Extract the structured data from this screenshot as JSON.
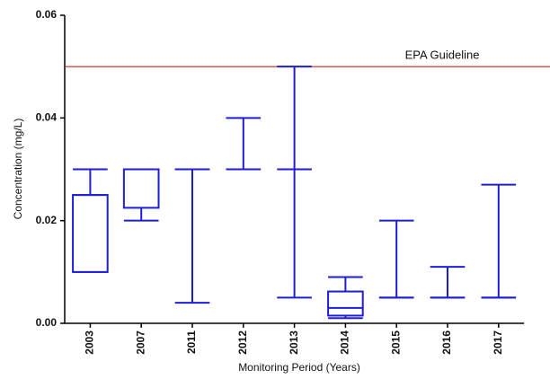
{
  "chart_data": {
    "type": "box",
    "xlabel": "Monitoring Period (Years)",
    "ylabel": "Concentration (mg/L)",
    "categories": [
      "2003",
      "2007",
      "2011",
      "2012",
      "2013",
      "2014",
      "2015",
      "2016",
      "2017"
    ],
    "color": "#1e1ed8",
    "min": [
      0.01,
      0.02,
      0.004,
      0.03,
      0.005,
      0.001,
      0.005,
      0.005,
      0.005
    ],
    "q1": [
      0.01,
      0.0225,
      0.03,
      0.03,
      0.03,
      0.0015,
      0.005,
      0.005,
      0.005
    ],
    "median": [
      0.025,
      0.03,
      0.03,
      0.03,
      0.03,
      0.003,
      0.005,
      0.005,
      0.005
    ],
    "q3": [
      0.025,
      0.03,
      0.03,
      0.03,
      0.03,
      0.0062,
      0.005,
      0.005,
      0.005
    ],
    "max": [
      0.03,
      0.03,
      0.03,
      0.04,
      0.05,
      0.009,
      0.02,
      0.011,
      0.027
    ],
    "ylim": [
      0,
      0.06
    ],
    "yticks": [
      {
        "value": 0,
        "label": "0.00"
      },
      {
        "value": 0.02,
        "label": "0.02"
      },
      {
        "value": 0.04,
        "label": "0.04"
      },
      {
        "value": 0.06,
        "label": "0.06"
      }
    ],
    "reference_line": {
      "value": 0.05,
      "label": "EPA Guideline",
      "color": "#d42020"
    }
  }
}
